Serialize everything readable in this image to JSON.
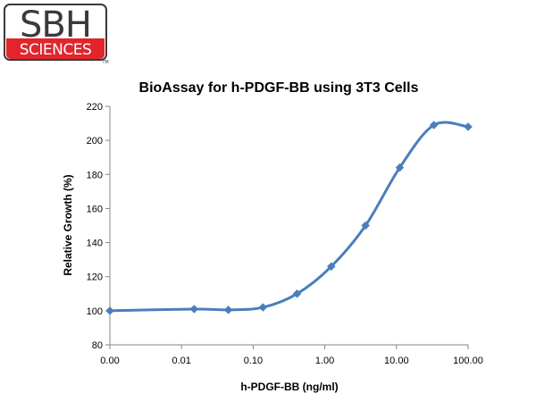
{
  "logo": {
    "line1": "SBH",
    "line2": "SCIENCES",
    "tm": "TM",
    "red": "#e2242b",
    "dark": "#3a3a3a"
  },
  "chart_data": {
    "type": "line",
    "title": "BioAssay for h-PDGF-BB using 3T3 Cells",
    "xlabel": "h-PDGF-BB (ng/ml)",
    "ylabel": "Relative Growth (%)",
    "x_scale": "log",
    "x_tick_labels": [
      "0.00",
      "0.01",
      "0.10",
      "1.00",
      "10.00",
      "100.00"
    ],
    "ylim": [
      80,
      220
    ],
    "y_ticks": [
      80,
      100,
      120,
      140,
      160,
      180,
      200,
      220
    ],
    "grid": false,
    "legend": "none",
    "series": [
      {
        "color": "#4a7ebb",
        "marker": "diamond",
        "smooth": true,
        "x": [
          0.001,
          0.015,
          0.045,
          0.137,
          0.41,
          1.23,
          3.7,
          11.1,
          33.3,
          100
        ],
        "y": [
          100,
          101,
          100.5,
          102,
          110,
          126,
          150,
          184,
          209,
          208
        ]
      }
    ]
  }
}
